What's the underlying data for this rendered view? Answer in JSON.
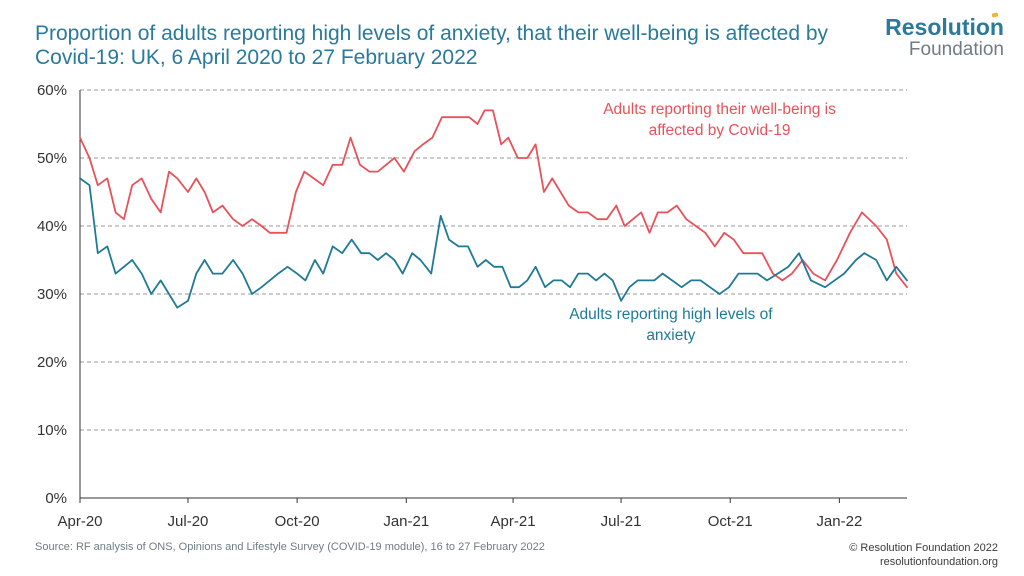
{
  "header": {
    "title": "Proportion of adults reporting high levels of anxiety, that their well-being is affected by Covid-19: UK, 6 April 2020 to 27 February 2022"
  },
  "logo": {
    "line1": "Resolution",
    "line2": "Foundation"
  },
  "footer": {
    "source": "Source: RF analysis of ONS, Opinions and Lifestyle Survey (COVID-19 module), 16 to 27 February 2022",
    "copyright": "© Resolution Foundation 2022",
    "website": "resolutionfoundation.org"
  },
  "colors": {
    "wellbeing": "#e8525a",
    "anxiety": "#1f7a96",
    "title": "#2a7a9b",
    "grid": "#9a9a9a"
  },
  "chart_data": {
    "type": "line",
    "title": "Proportion of adults reporting high levels of anxiety, that their well-being is affected by Covid-19: UK, 6 April 2020 to 27 February 2022",
    "ylim": [
      0,
      60
    ],
    "y_ticks": [
      "0%",
      "10%",
      "20%",
      "30%",
      "40%",
      "50%",
      "60%"
    ],
    "y_tick_values": [
      0,
      10,
      20,
      30,
      40,
      50,
      60
    ],
    "x_range": [
      "2020-04-01",
      "2022-02-27"
    ],
    "x_ticks": [
      {
        "label": "Apr-20",
        "date": "2020-04-01"
      },
      {
        "label": "Jul-20",
        "date": "2020-07-01"
      },
      {
        "label": "Oct-20",
        "date": "2020-10-01"
      },
      {
        "label": "Jan-21",
        "date": "2021-01-01"
      },
      {
        "label": "Apr-21",
        "date": "2021-04-01"
      },
      {
        "label": "Jul-21",
        "date": "2021-07-01"
      },
      {
        "label": "Oct-21",
        "date": "2021-10-01"
      },
      {
        "label": "Jan-22",
        "date": "2022-01-01"
      }
    ],
    "grid": true,
    "series": [
      {
        "name": "Adults reporting their well-being is affected by Covid-19",
        "color": "#e8525a",
        "points": [
          [
            "2020-04-01",
            53
          ],
          [
            "2020-04-09",
            50
          ],
          [
            "2020-04-16",
            46
          ],
          [
            "2020-04-24",
            47
          ],
          [
            "2020-05-01",
            42
          ],
          [
            "2020-05-08",
            41
          ],
          [
            "2020-05-15",
            46
          ],
          [
            "2020-05-23",
            47
          ],
          [
            "2020-05-31",
            44
          ],
          [
            "2020-06-08",
            42
          ],
          [
            "2020-06-15",
            48
          ],
          [
            "2020-06-22",
            47
          ],
          [
            "2020-07-01",
            45
          ],
          [
            "2020-07-08",
            47
          ],
          [
            "2020-07-15",
            45
          ],
          [
            "2020-07-22",
            42
          ],
          [
            "2020-07-30",
            43
          ],
          [
            "2020-08-08",
            41
          ],
          [
            "2020-08-16",
            40
          ],
          [
            "2020-08-24",
            41
          ],
          [
            "2020-09-01",
            40
          ],
          [
            "2020-09-08",
            39
          ],
          [
            "2020-09-22",
            39
          ],
          [
            "2020-09-30",
            45
          ],
          [
            "2020-10-07",
            48
          ],
          [
            "2020-10-15",
            47
          ],
          [
            "2020-10-23",
            46
          ],
          [
            "2020-10-31",
            49
          ],
          [
            "2020-11-08",
            49
          ],
          [
            "2020-11-15",
            53
          ],
          [
            "2020-11-23",
            49
          ],
          [
            "2020-12-01",
            48
          ],
          [
            "2020-12-08",
            48
          ],
          [
            "2020-12-15",
            49
          ],
          [
            "2020-12-22",
            50
          ],
          [
            "2020-12-30",
            48
          ],
          [
            "2021-01-08",
            51
          ],
          [
            "2021-01-15",
            52
          ],
          [
            "2021-01-23",
            53
          ],
          [
            "2021-01-31",
            56
          ],
          [
            "2021-02-08",
            56
          ],
          [
            "2021-02-15",
            56
          ],
          [
            "2021-02-23",
            56
          ],
          [
            "2021-03-02",
            55
          ],
          [
            "2021-03-08",
            57
          ],
          [
            "2021-03-15",
            57
          ],
          [
            "2021-03-22",
            52
          ],
          [
            "2021-03-28",
            53
          ],
          [
            "2021-04-05",
            50
          ],
          [
            "2021-04-13",
            50
          ],
          [
            "2021-04-20",
            52
          ],
          [
            "2021-04-27",
            45
          ],
          [
            "2021-05-04",
            47
          ],
          [
            "2021-05-11",
            45
          ],
          [
            "2021-05-18",
            43
          ],
          [
            "2021-05-26",
            42
          ],
          [
            "2021-06-03",
            42
          ],
          [
            "2021-06-11",
            41
          ],
          [
            "2021-06-19",
            41
          ],
          [
            "2021-06-27",
            43
          ],
          [
            "2021-07-04",
            40
          ],
          [
            "2021-07-11",
            41
          ],
          [
            "2021-07-18",
            42
          ],
          [
            "2021-07-25",
            39
          ],
          [
            "2021-08-01",
            42
          ],
          [
            "2021-08-09",
            42
          ],
          [
            "2021-08-17",
            43
          ],
          [
            "2021-08-25",
            41
          ],
          [
            "2021-09-02",
            40
          ],
          [
            "2021-09-10",
            39
          ],
          [
            "2021-09-18",
            37
          ],
          [
            "2021-09-26",
            39
          ],
          [
            "2021-10-04",
            38
          ],
          [
            "2021-10-12",
            36
          ],
          [
            "2021-10-20",
            36
          ],
          [
            "2021-10-28",
            36
          ],
          [
            "2021-11-06",
            33
          ],
          [
            "2021-11-14",
            32
          ],
          [
            "2021-11-22",
            33
          ],
          [
            "2021-12-01",
            35
          ],
          [
            "2021-12-10",
            33
          ],
          [
            "2021-12-20",
            32
          ],
          [
            "2021-12-30",
            35
          ],
          [
            "2022-01-10",
            39
          ],
          [
            "2022-01-20",
            42
          ],
          [
            "2022-02-01",
            40
          ],
          [
            "2022-02-10",
            38
          ],
          [
            "2022-02-18",
            33
          ],
          [
            "2022-02-27",
            31
          ]
        ]
      },
      {
        "name": "Adults reporting high levels of anxiety",
        "color": "#1f7a96",
        "points": [
          [
            "2020-04-01",
            47
          ],
          [
            "2020-04-09",
            46
          ],
          [
            "2020-04-16",
            36
          ],
          [
            "2020-04-24",
            37
          ],
          [
            "2020-05-01",
            33
          ],
          [
            "2020-05-08",
            34
          ],
          [
            "2020-05-15",
            35
          ],
          [
            "2020-05-23",
            33
          ],
          [
            "2020-05-31",
            30
          ],
          [
            "2020-06-08",
            32
          ],
          [
            "2020-06-15",
            30
          ],
          [
            "2020-06-22",
            28
          ],
          [
            "2020-07-01",
            29
          ],
          [
            "2020-07-08",
            33
          ],
          [
            "2020-07-15",
            35
          ],
          [
            "2020-07-22",
            33
          ],
          [
            "2020-07-30",
            33
          ],
          [
            "2020-08-08",
            35
          ],
          [
            "2020-08-16",
            33
          ],
          [
            "2020-08-24",
            30
          ],
          [
            "2020-09-01",
            31
          ],
          [
            "2020-09-08",
            32
          ],
          [
            "2020-09-15",
            33
          ],
          [
            "2020-09-23",
            34
          ],
          [
            "2020-10-01",
            33
          ],
          [
            "2020-10-08",
            32
          ],
          [
            "2020-10-16",
            35
          ],
          [
            "2020-10-23",
            33
          ],
          [
            "2020-10-31",
            37
          ],
          [
            "2020-11-08",
            36
          ],
          [
            "2020-11-16",
            38
          ],
          [
            "2020-11-24",
            36
          ],
          [
            "2020-12-01",
            36
          ],
          [
            "2020-12-08",
            35
          ],
          [
            "2020-12-15",
            36
          ],
          [
            "2020-12-22",
            35
          ],
          [
            "2020-12-29",
            33
          ],
          [
            "2021-01-06",
            36
          ],
          [
            "2021-01-13",
            35
          ],
          [
            "2021-01-22",
            33
          ],
          [
            "2021-01-30",
            41.5
          ],
          [
            "2021-02-06",
            38
          ],
          [
            "2021-02-14",
            37
          ],
          [
            "2021-02-22",
            37
          ],
          [
            "2021-03-02",
            34
          ],
          [
            "2021-03-09",
            35
          ],
          [
            "2021-03-16",
            34
          ],
          [
            "2021-03-23",
            34
          ],
          [
            "2021-03-30",
            31
          ],
          [
            "2021-04-06",
            31
          ],
          [
            "2021-04-13",
            32
          ],
          [
            "2021-04-20",
            34
          ],
          [
            "2021-04-28",
            31
          ],
          [
            "2021-05-05",
            32
          ],
          [
            "2021-05-12",
            32
          ],
          [
            "2021-05-19",
            31
          ],
          [
            "2021-05-26",
            33
          ],
          [
            "2021-06-03",
            33
          ],
          [
            "2021-06-10",
            32
          ],
          [
            "2021-06-17",
            33
          ],
          [
            "2021-06-24",
            32
          ],
          [
            "2021-07-01",
            29
          ],
          [
            "2021-07-08",
            31
          ],
          [
            "2021-07-15",
            32
          ],
          [
            "2021-07-22",
            32
          ],
          [
            "2021-07-29",
            32
          ],
          [
            "2021-08-05",
            33
          ],
          [
            "2021-08-13",
            32
          ],
          [
            "2021-08-21",
            31
          ],
          [
            "2021-08-29",
            32
          ],
          [
            "2021-09-06",
            32
          ],
          [
            "2021-09-14",
            31
          ],
          [
            "2021-09-22",
            30
          ],
          [
            "2021-09-30",
            31
          ],
          [
            "2021-10-08",
            33
          ],
          [
            "2021-10-16",
            33
          ],
          [
            "2021-10-24",
            33
          ],
          [
            "2021-11-01",
            32
          ],
          [
            "2021-11-10",
            33
          ],
          [
            "2021-11-19",
            34
          ],
          [
            "2021-11-28",
            36
          ],
          [
            "2021-12-08",
            32
          ],
          [
            "2021-12-20",
            31
          ],
          [
            "2022-01-05",
            33
          ],
          [
            "2022-01-15",
            35
          ],
          [
            "2022-01-22",
            36
          ],
          [
            "2022-02-01",
            35
          ],
          [
            "2022-02-10",
            32
          ],
          [
            "2022-02-18",
            34
          ],
          [
            "2022-02-27",
            32
          ]
        ]
      }
    ],
    "annotations": [
      {
        "series": 0,
        "lines": [
          "Adults reporting their well-being is",
          "affected by Covid-19"
        ],
        "x": "2021-09-22",
        "y": 56.5
      },
      {
        "series": 1,
        "lines": [
          "Adults reporting high levels of",
          "anxiety"
        ],
        "x": "2021-08-12",
        "y": 26.3
      }
    ]
  }
}
